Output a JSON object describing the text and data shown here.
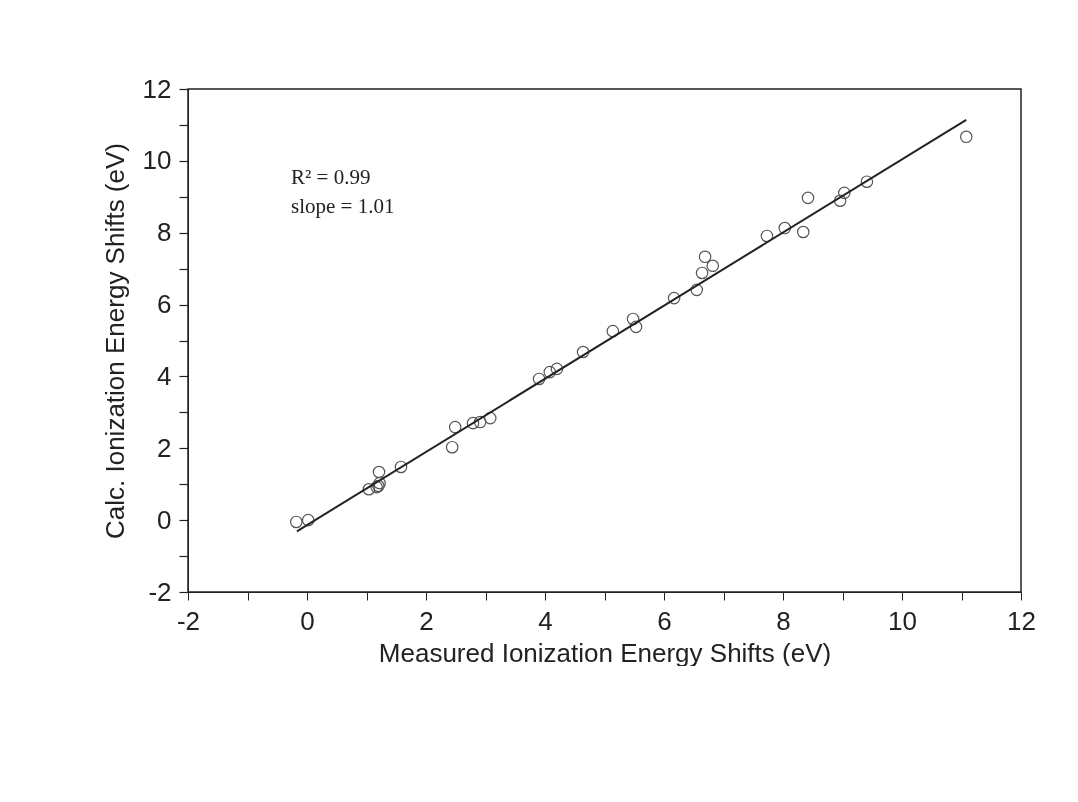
{
  "chart_data": {
    "type": "scatter",
    "xlabel": "Measured Ionization Energy Shifts (eV)",
    "ylabel": "Calc. Ionization Energy Shifts (eV)",
    "annotations": [
      "R² = 0.99",
      "slope = 1.01"
    ],
    "xlim": [
      -2,
      12
    ],
    "ylim": [
      -2,
      12
    ],
    "xticks": [
      -2,
      {
        "value": -1,
        "label": null
      },
      0,
      {
        "value": 1,
        "label": null
      },
      2,
      {
        "value": 3,
        "label": null
      },
      4,
      {
        "value": 5,
        "label": null
      },
      6,
      {
        "value": 7,
        "label": null
      },
      8,
      {
        "value": 9,
        "label": null
      },
      10,
      {
        "value": 11,
        "label": null
      },
      12
    ],
    "yticks": [
      -2,
      {
        "value": -1,
        "label": null
      },
      0,
      {
        "value": 1,
        "label": null
      },
      2,
      {
        "value": 3,
        "label": null
      },
      4,
      {
        "value": 5,
        "label": null
      },
      6,
      {
        "value": 7,
        "label": null
      },
      8,
      {
        "value": 9,
        "label": null
      },
      10,
      {
        "value": 11,
        "label": null
      },
      12
    ],
    "grid": false,
    "marker": "circle",
    "series": [
      {
        "color": "#555555",
        "x": [
          -0.18,
          0.02,
          1.04,
          1.17,
          1.2,
          1.22,
          1.21,
          1.58,
          2.44,
          2.49,
          2.79,
          2.91,
          3.08,
          3.9,
          4.08,
          4.2,
          4.64,
          5.14,
          5.48,
          5.53,
          6.17,
          6.55,
          6.64,
          6.69,
          6.82,
          7.73,
          8.03,
          8.34,
          8.42,
          8.96,
          9.03,
          9.41,
          11.08
        ],
        "values": [
          -0.05,
          0.0,
          0.86,
          0.92,
          0.95,
          1.03,
          1.34,
          1.48,
          2.03,
          2.59,
          2.7,
          2.73,
          2.84,
          3.93,
          4.12,
          4.21,
          4.68,
          5.26,
          5.6,
          5.38,
          6.18,
          6.41,
          6.88,
          7.33,
          7.08,
          7.91,
          8.13,
          8.02,
          8.97,
          8.89,
          9.11,
          9.42,
          10.67
        ]
      },
      {
        "type": "line",
        "color": "#222222",
        "line_style": "solid",
        "marker": "none",
        "x": [
          -0.17,
          11.08
        ],
        "values": [
          -0.31,
          11.14
        ]
      }
    ]
  }
}
